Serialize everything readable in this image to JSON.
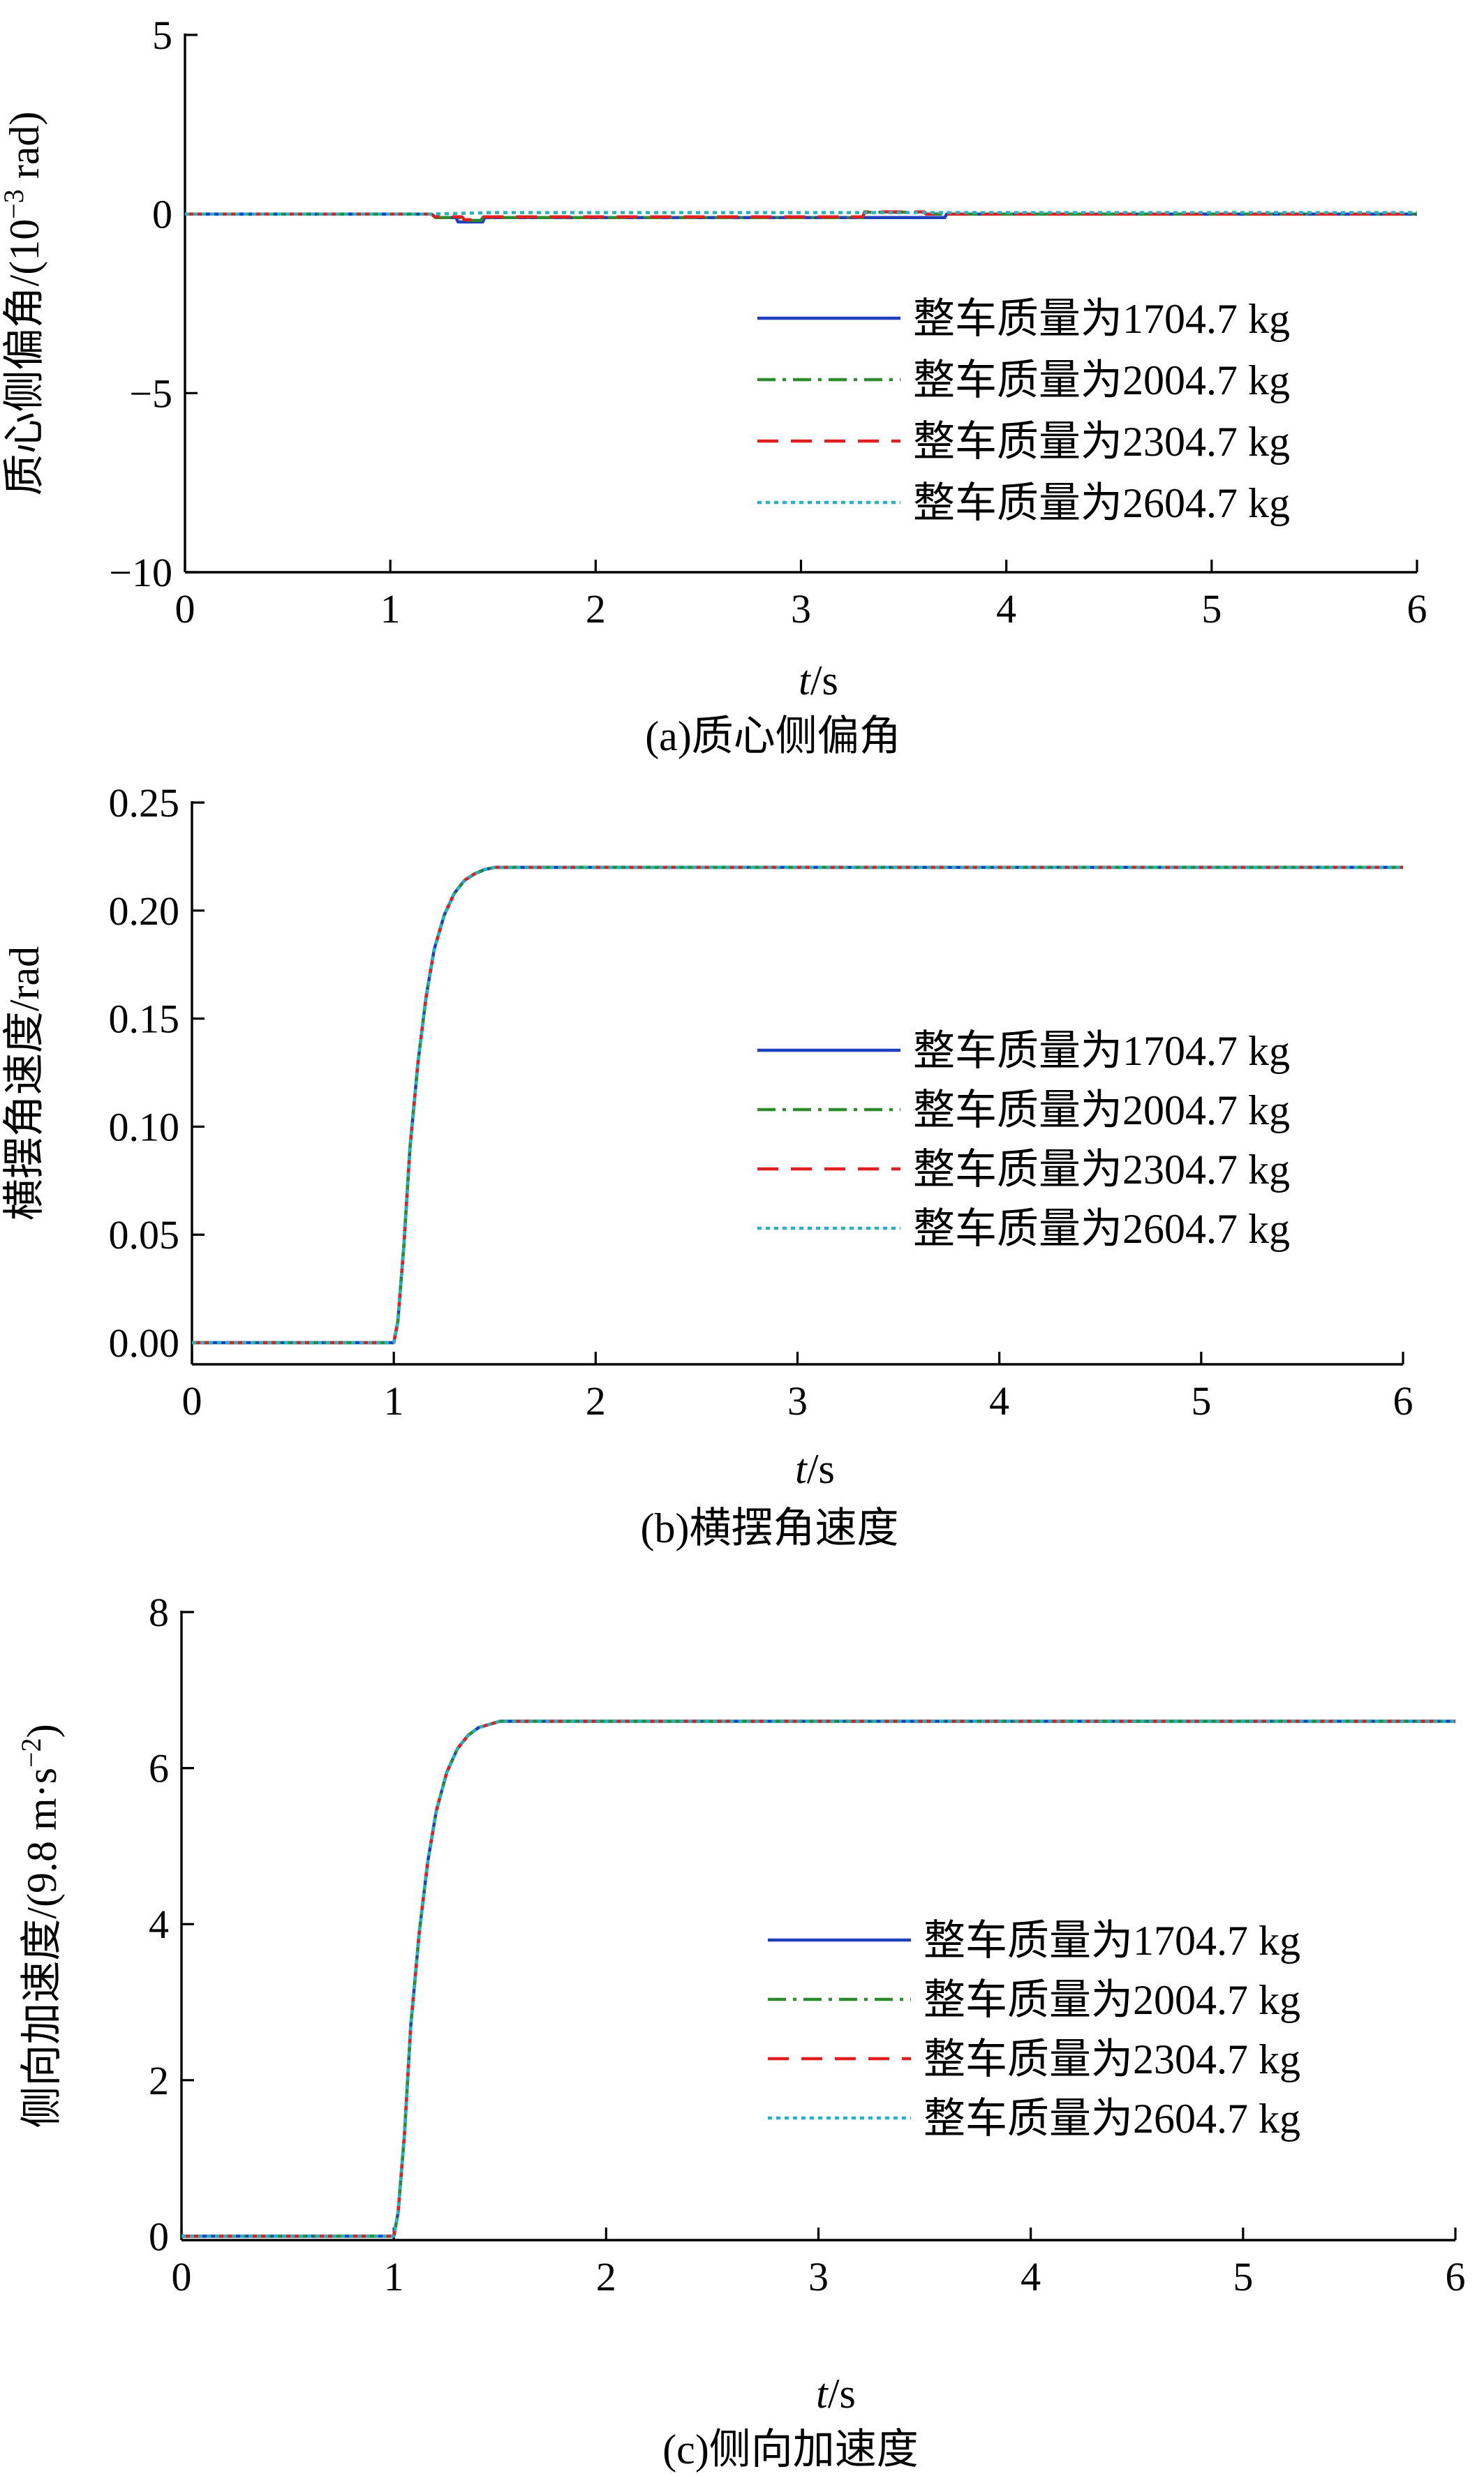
{
  "chart_data": [
    {
      "type": "line",
      "caption": "(a)质心侧偏角",
      "xlabel_italic": "t",
      "xlabel_unit": "/s",
      "ylabel_main": "质心侧偏角/(10",
      "ylabel_sup": "−3",
      "ylabel_tail": " rad)",
      "xlim": [
        0,
        6
      ],
      "ylim": [
        -10,
        5
      ],
      "xticks": [
        0,
        1,
        2,
        3,
        4,
        5,
        6
      ],
      "xtick_labels": [
        "0",
        "1",
        "2",
        "3",
        "4",
        "5",
        "6"
      ],
      "yticks": [
        5,
        0,
        -5,
        -10
      ],
      "ytick_labels": [
        "5",
        "0",
        "−5",
        "−10"
      ],
      "legend_position": "right",
      "series": [
        {
          "name": "整车质量为1704.7 kg",
          "color": "#1f3fbf",
          "dash": "solid",
          "x": [
            0,
            1.2,
            1.22,
            1.32,
            1.33,
            1.45,
            1.46,
            2.0,
            3.0,
            3.7,
            3.71,
            6.0
          ],
          "y": [
            0,
            0,
            -0.1,
            -0.1,
            -0.22,
            -0.22,
            -0.1,
            -0.1,
            -0.1,
            -0.1,
            0,
            0
          ]
        },
        {
          "name": "整车质量为2004.7 kg",
          "color": "#2e8b2e",
          "dash": "dashdot",
          "x": [
            0,
            1.2,
            1.22,
            1.34,
            1.35,
            1.44,
            1.45,
            3.3,
            3.31,
            3.6,
            3.61,
            6.0
          ],
          "y": [
            0,
            0,
            -0.1,
            -0.1,
            -0.18,
            -0.18,
            -0.1,
            -0.1,
            0.05,
            0.05,
            0,
            0
          ]
        },
        {
          "name": "整车质量为2304.7 kg",
          "color": "#e02020",
          "dash": "dashed",
          "x": [
            0,
            1.2,
            1.22,
            1.35,
            1.36,
            1.43,
            1.44,
            3.3,
            3.31,
            3.6,
            3.61,
            6.0
          ],
          "y": [
            0,
            0,
            -0.08,
            -0.08,
            -0.16,
            -0.16,
            -0.08,
            -0.08,
            0.06,
            0.06,
            0,
            0
          ]
        },
        {
          "name": "整车质量为2604.7 kg",
          "color": "#20b5c0",
          "dash": "dotted",
          "x": [
            0,
            1.2,
            1.5,
            6.0
          ],
          "y": [
            0,
            0,
            0.04,
            0.04
          ]
        }
      ]
    },
    {
      "type": "line",
      "caption": "(b)横摆角速度",
      "xlabel_italic": "t",
      "xlabel_unit": "/s",
      "ylabel_main": "横摆角速度/rad",
      "ylabel_sup": "",
      "ylabel_tail": "",
      "xlim": [
        0,
        6
      ],
      "ylim": [
        -0.01,
        0.25
      ],
      "xticks": [
        0,
        1,
        2,
        3,
        4,
        5,
        6
      ],
      "xtick_labels": [
        "0",
        "1",
        "2",
        "3",
        "4",
        "5",
        "6"
      ],
      "yticks": [
        0.25,
        0.2,
        0.15,
        0.1,
        0.05,
        0.0
      ],
      "ytick_labels": [
        "0.25",
        "0.20",
        "0.15",
        "0.10",
        "0.05",
        "0.00"
      ],
      "legend_position": "right",
      "series": [
        {
          "name": "整车质量为1704.7 kg",
          "color": "#1f3fbf",
          "dash": "solid",
          "x": [
            0,
            1.0,
            1.02,
            1.05,
            1.08,
            1.12,
            1.16,
            1.2,
            1.25,
            1.3,
            1.35,
            1.4,
            1.45,
            1.5,
            6.0
          ],
          "y": [
            0,
            0,
            0.01,
            0.045,
            0.09,
            0.13,
            0.16,
            0.182,
            0.198,
            0.208,
            0.214,
            0.217,
            0.219,
            0.22,
            0.22
          ]
        },
        {
          "name": "整车质量为2004.7 kg",
          "color": "#2e8b2e",
          "dash": "dashdot",
          "x": [
            0,
            1.0,
            1.02,
            1.05,
            1.08,
            1.12,
            1.16,
            1.2,
            1.25,
            1.3,
            1.35,
            1.4,
            1.45,
            1.5,
            6.0
          ],
          "y": [
            0,
            0,
            0.01,
            0.045,
            0.09,
            0.13,
            0.16,
            0.182,
            0.198,
            0.208,
            0.214,
            0.217,
            0.219,
            0.22,
            0.22
          ]
        },
        {
          "name": "整车质量为2304.7 kg",
          "color": "#e02020",
          "dash": "dashed",
          "x": [
            0,
            1.0,
            1.02,
            1.05,
            1.08,
            1.12,
            1.16,
            1.2,
            1.25,
            1.3,
            1.35,
            1.4,
            1.45,
            1.5,
            6.0
          ],
          "y": [
            0,
            0,
            0.01,
            0.045,
            0.09,
            0.13,
            0.16,
            0.182,
            0.198,
            0.208,
            0.214,
            0.217,
            0.219,
            0.22,
            0.22
          ]
        },
        {
          "name": "整车质量为2604.7 kg",
          "color": "#20b5c0",
          "dash": "dotted",
          "x": [
            0,
            1.0,
            1.02,
            1.05,
            1.08,
            1.12,
            1.16,
            1.2,
            1.25,
            1.3,
            1.35,
            1.4,
            1.45,
            1.5,
            6.0
          ],
          "y": [
            0,
            0,
            0.01,
            0.045,
            0.09,
            0.13,
            0.16,
            0.182,
            0.198,
            0.208,
            0.214,
            0.217,
            0.219,
            0.22,
            0.22
          ]
        }
      ]
    },
    {
      "type": "line",
      "caption": "(c)侧向加速度",
      "xlabel_italic": "t",
      "xlabel_unit": "/s",
      "ylabel_main": "侧向加速度/(9.8 m·s",
      "ylabel_sup": "−2",
      "ylabel_tail": ")",
      "xlim": [
        0,
        6
      ],
      "ylim": [
        -0.05,
        8
      ],
      "xticks": [
        0,
        1,
        2,
        3,
        4,
        5,
        6
      ],
      "xtick_labels": [
        "0",
        "1",
        "2",
        "3",
        "4",
        "5",
        "6"
      ],
      "yticks": [
        8,
        6,
        4,
        2,
        0
      ],
      "ytick_labels": [
        "8",
        "6",
        "4",
        "2",
        "0"
      ],
      "legend_position": "right",
      "series": [
        {
          "name": "整车质量为1704.7 kg",
          "color": "#1f3fbf",
          "dash": "solid",
          "x": [
            0,
            1.0,
            1.02,
            1.05,
            1.08,
            1.12,
            1.16,
            1.2,
            1.25,
            1.3,
            1.35,
            1.4,
            1.45,
            1.5,
            6.0
          ],
          "y": [
            0,
            0,
            0.3,
            1.3,
            2.7,
            3.9,
            4.8,
            5.45,
            5.95,
            6.25,
            6.42,
            6.52,
            6.56,
            6.6,
            6.6
          ]
        },
        {
          "name": "整车质量为2004.7 kg",
          "color": "#2e8b2e",
          "dash": "dashdot",
          "x": [
            0,
            1.0,
            1.02,
            1.05,
            1.08,
            1.12,
            1.16,
            1.2,
            1.25,
            1.3,
            1.35,
            1.4,
            1.45,
            1.5,
            6.0
          ],
          "y": [
            0,
            0,
            0.3,
            1.3,
            2.7,
            3.9,
            4.8,
            5.45,
            5.95,
            6.25,
            6.42,
            6.52,
            6.56,
            6.6,
            6.6
          ]
        },
        {
          "name": "整车质量为2304.7 kg",
          "color": "#e02020",
          "dash": "dashed",
          "x": [
            0,
            1.0,
            1.02,
            1.05,
            1.08,
            1.12,
            1.16,
            1.2,
            1.25,
            1.3,
            1.35,
            1.4,
            1.45,
            1.5,
            6.0
          ],
          "y": [
            0,
            0,
            0.3,
            1.3,
            2.7,
            3.9,
            4.8,
            5.45,
            5.95,
            6.25,
            6.42,
            6.52,
            6.56,
            6.6,
            6.6
          ]
        },
        {
          "name": "整车质量为2604.7 kg",
          "color": "#20b5c0",
          "dash": "dotted",
          "x": [
            0,
            1.0,
            1.02,
            1.05,
            1.08,
            1.12,
            1.16,
            1.2,
            1.25,
            1.3,
            1.35,
            1.4,
            1.45,
            1.5,
            6.0
          ],
          "y": [
            0,
            0,
            0.3,
            1.3,
            2.7,
            3.9,
            4.8,
            5.45,
            5.95,
            6.25,
            6.42,
            6.52,
            6.56,
            6.6,
            6.6
          ]
        }
      ]
    }
  ]
}
